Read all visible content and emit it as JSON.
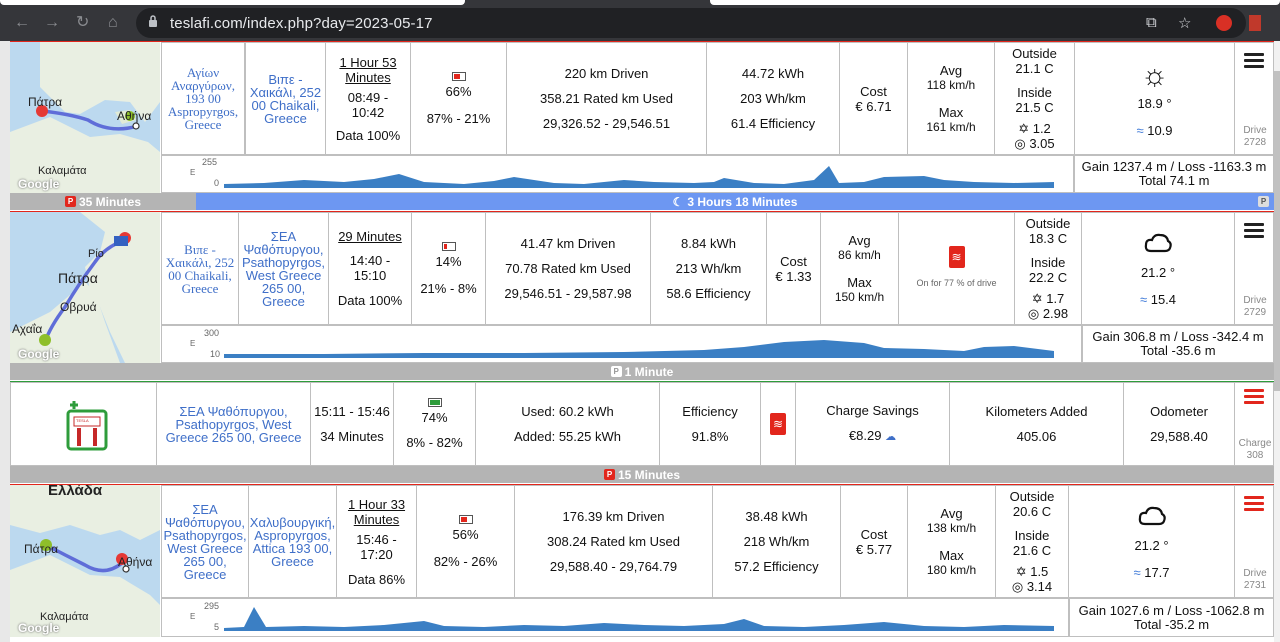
{
  "browser": {
    "url": "teslafi.com/index.php?day=2023-05-17"
  },
  "trips": [
    {
      "map_labels": [
        "Πάτρα",
        "Αθήνα",
        "Καλαμάτα",
        "Google"
      ],
      "from": "Αγίων Αναργύρων, 193 00 Aspropyrgos, Greece",
      "to": "Βιπε - Χαικάλι, 252 00 Chaikali, Greece",
      "duration": "1 Hour 53 Minutes",
      "time": "08:49 - 10:42",
      "data": "Data 100%",
      "battery_pct": "66%",
      "battery_range": "87% - 21%",
      "km_driven": "220 km Driven",
      "rated_used": "358.21 Rated km Used",
      "odometer": "29,326.52 - 29,546.51",
      "kwh": "44.72 kWh",
      "whkm": "203 Wh/km",
      "efficiency": "61.4 Efficiency",
      "cost_label": "Cost",
      "cost": "€ 6.71",
      "avg_label": "Avg",
      "avg": "118 km/h",
      "max_label": "Max",
      "max": "161 km/h",
      "outside_label": "Outside",
      "outside": "21.1 C",
      "inside_label": "Inside",
      "inside": "21.5 C",
      "fan": "1.2",
      "wheel": "3.05",
      "weather_temp": "18.9 °",
      "wind": "10.9",
      "drive_label": "Drive",
      "drive_num": "2728",
      "elev_max": "255",
      "elev_min": "0",
      "elev_unit": "E",
      "gain": "Gain 1237.4 m / Loss -1163.3 m",
      "total": "Total 74.1 m"
    },
    {
      "map_labels": [
        "Πάτρα",
        "Ρίο",
        "Οβρυά",
        "Αχαΐα",
        "Google"
      ],
      "from": "Βιπε - Χαικάλι, 252 00 Chaikali, Greece",
      "to": "ΣΕΑ Ψαθόπυργου, Psathopyrgos, West Greece 265 00, Greece",
      "duration": "29 Minutes",
      "time": "14:40 - 15:10",
      "data": "Data 100%",
      "battery_pct": "14%",
      "battery_range": "21% - 8%",
      "km_driven": "41.47 km Driven",
      "rated_used": "70.78 Rated km Used",
      "odometer": "29,546.51 - 29,587.98",
      "kwh": "8.84 kWh",
      "whkm": "213 Wh/km",
      "efficiency": "58.6 Efficiency",
      "cost_label": "Cost",
      "cost": "€ 1.33",
      "avg_label": "Avg",
      "avg": "86 km/h",
      "max_label": "Max",
      "max": "150 km/h",
      "heater_note": "On for 77 % of drive",
      "outside_label": "Outside",
      "outside": "18.3 C",
      "inside_label": "Inside",
      "inside": "22.2 C",
      "fan": "1.7",
      "wheel": "2.98",
      "weather_temp": "21.2 °",
      "wind": "15.4",
      "drive_label": "Drive",
      "drive_num": "2729",
      "elev_max": "300",
      "elev_min": "10",
      "elev_unit": "E",
      "gain": "Gain 306.8 m / Loss -342.4 m",
      "total": "Total -35.6 m"
    },
    {
      "map_labels": [
        "Ελλάδα",
        "Πάτρα",
        "Αθήνα",
        "Καλαμάτα",
        "Google"
      ],
      "from": "ΣΕΑ Ψαθόπυργου, Psathopyrgos, West Greece 265 00, Greece",
      "to": "Χαλυβουργική, Aspropyrgos, Attica 193 00, Greece",
      "duration": "1 Hour 33 Minutes",
      "time": "15:46 - 17:20",
      "data": "Data 86%",
      "battery_pct": "56%",
      "battery_range": "82% - 26%",
      "km_driven": "176.39 km Driven",
      "rated_used": "308.24 Rated km Used",
      "odometer": "29,588.40 - 29,764.79",
      "kwh": "38.48 kWh",
      "whkm": "218 Wh/km",
      "efficiency": "57.2 Efficiency",
      "cost_label": "Cost",
      "cost": "€ 5.77",
      "avg_label": "Avg",
      "avg": "138 km/h",
      "max_label": "Max",
      "max": "180 km/h",
      "outside_label": "Outside",
      "outside": "20.6 C",
      "inside_label": "Inside",
      "inside": "21.6 C",
      "fan": "1.5",
      "wheel": "3.14",
      "weather_temp": "21.2 °",
      "wind": "17.7",
      "drive_label": "Drive",
      "drive_num": "2731",
      "elev_max": "295",
      "elev_min": "5",
      "elev_unit": "E",
      "gain": "Gain 1027.6 m / Loss -1062.8 m",
      "total": "Total -35.2 m"
    }
  ],
  "separators": {
    "park1": "35 Minutes",
    "sleep": "3 Hours 18 Minutes",
    "park2": "1 Minute",
    "park3": "15 Minutes",
    "p": "P"
  },
  "charge": {
    "location": "ΣΕΑ Ψαθόπυργου, Psathopyrgos, West Greece 265 00, Greece",
    "time": "15:11 - 15:46",
    "duration": "34 Minutes",
    "battery_pct": "74%",
    "battery_range": "8% - 82%",
    "used": "Used: 60.2 kWh",
    "added": "Added: 55.25 kWh",
    "efficiency_label": "Efficiency",
    "efficiency": "91.8%",
    "savings_label": "Charge Savings",
    "savings": "€8.29",
    "km_added_label": "Kilometers Added",
    "km_added": "405.06",
    "odometer_label": "Odometer",
    "odometer": "29,588.40",
    "charge_label": "Charge",
    "charge_num": "308",
    "charger_brand": "TESLA"
  },
  "colors": {
    "accent_red": "#e2261c",
    "link_blue": "#3f6fc8",
    "sleep_blue": "#6d97f2",
    "sep_gray": "#b4b4b4"
  }
}
